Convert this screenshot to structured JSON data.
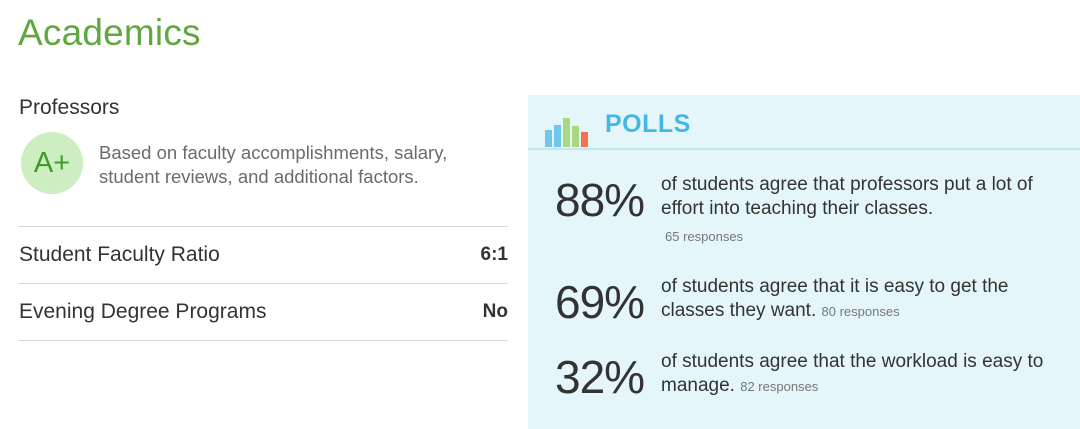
{
  "heading": "Academics",
  "professors": {
    "label": "Professors",
    "grade": "A+",
    "description": "Based on faculty accomplishments, salary, student reviews, and additional factors."
  },
  "stats": [
    {
      "label": "Student Faculty Ratio",
      "value": "6:1"
    },
    {
      "label": "Evening Degree Programs",
      "value": "No"
    }
  ],
  "polls": {
    "title": "POLLS",
    "icon": "bar-chart-icon",
    "icon_colors": [
      "#6fc7ea",
      "#a8d87f",
      "#f07154"
    ],
    "items": [
      {
        "percent": "88%",
        "text": "of students agree that professors put a lot of effort into teaching their classes.",
        "responses": "65 responses"
      },
      {
        "percent": "69%",
        "text": "of students agree that it is easy to get the classes they want.",
        "responses": "80 responses"
      },
      {
        "percent": "32%",
        "text": "of students agree that the workload is easy to manage.",
        "responses": "82 responses"
      }
    ]
  },
  "colors": {
    "accent_green": "#5fa83f",
    "grade_bg": "#cdeec1",
    "polls_bg": "#e5f6fb",
    "polls_title": "#44b8e4"
  }
}
